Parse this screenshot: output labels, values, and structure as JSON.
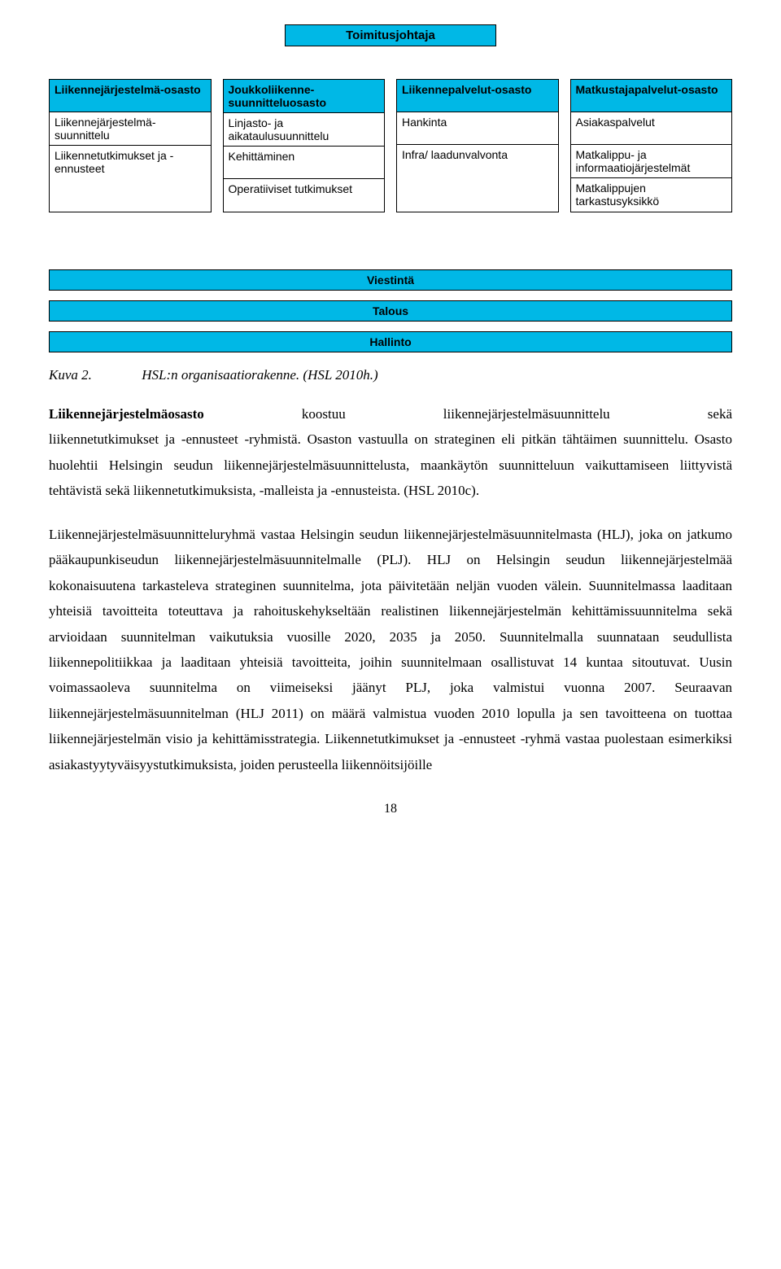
{
  "colors": {
    "header_bg": "#00b8e6",
    "border": "#000000",
    "page_bg": "#ffffff",
    "text": "#000000"
  },
  "org": {
    "top": "Toimitusjohtaja",
    "departments": [
      {
        "head": "Liikennejärjestelmä-osasto",
        "cells": [
          "Liikennejärjestelmä-suunnittelu",
          "Liikennetutkimukset ja -ennusteet"
        ]
      },
      {
        "head": "Joukkoliikenne-suunnitteluosasto",
        "cells": [
          "Linjasto- ja aikataulusuunnittelu",
          "Kehittäminen",
          "Operatiiviset tutkimukset"
        ]
      },
      {
        "head": "Liikennepalvelut-osasto",
        "cells": [
          "Hankinta",
          "Infra/ laadunvalvonta"
        ]
      },
      {
        "head": "Matkustajapalvelut-osasto",
        "cells": [
          "Asiakaspalvelut",
          "Matkalippu- ja informaatiojärjestelmät",
          "Matkalippujen tarkastusyksikkö"
        ]
      }
    ],
    "wide": [
      "Viestintä",
      "Talous",
      "Hallinto"
    ]
  },
  "caption": {
    "label": "Kuva 2.",
    "text": "HSL:n organisaatiorakenne. (HSL 2010h.)"
  },
  "para1_lead_a": "Liikennejärjestelmäosasto",
  "para1_lead_b": "koostuu",
  "para1_lead_c": "liikennejärjestelmäsuunnittelu",
  "para1_lead_d": "sekä",
  "para1_rest": "liikennetutkimukset ja -ennusteet -ryhmistä. Osaston vastuulla on strateginen eli pitkän tähtäimen suunnittelu. Osasto huolehtii Helsingin seudun liikennejärjestelmä­suunnittelusta, maankäytön suunnitteluun vaikuttamiseen liittyvistä tehtävistä sekä liikennetutkimuksista, -malleista ja -ennusteista. (HSL 2010c).",
  "para2": "Liikennejärjestelmäsuunnitteluryhmä vastaa Helsingin seudun liikennejärjestelmä­suunnitelmasta (HLJ), joka on jatkumo pääkaupunkiseudun liikenne­järjestelmäsuunnitelmalle (PLJ). HLJ on Helsingin seudun liikennejärjestelmää kokonaisuutena tarkasteleva strateginen suunnitelma, jota päivitetään neljän vuoden välein. Suunnitelmassa laaditaan yhteisiä tavoitteita toteuttava ja rahoituskehykseltään realistinen liikennejärjestelmän kehittämissuunnitelma sekä arvioidaan suunnitelman vaikutuksia vuosille 2020, 2035 ja 2050. Suunnitelmalla suunnataan seudullista liikennepolitiikkaa ja laaditaan yhteisiä tavoitteita, joihin suunnitelmaan osallistuvat 14 kuntaa sitoutuvat. Uusin voimassaoleva suunnitelma on viimeiseksi jäänyt PLJ, joka valmistui vuonna 2007. Seuraavan liikennejärjestelmäsuunnitelman (HLJ 2011) on määrä valmistua vuoden 2010 lopulla ja sen tavoitteena on tuottaa liikennejärjestelmän visio ja kehittämisstrategia. Liikennetutkimukset ja -ennusteet -ryhmä vastaa puolestaan esimerkiksi asiakastyytyväisyystutkimuksista, joiden perusteella liikennöitsijöille",
  "page_number": "18"
}
